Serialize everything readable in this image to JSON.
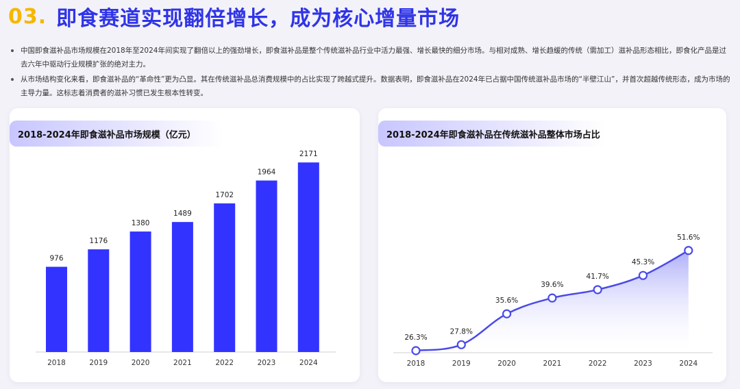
{
  "page": {
    "number": "03.",
    "title": "即食赛道实现翻倍增长，成为核心增量市场",
    "bullets": [
      "中国即食滋补品市场规模在2018年至2024年间实现了翻倍以上的强劲增长，即食滋补品是整个传统滋补品行业中活力最强、增长最快的细分市场。与相对成熟、增长趋缓的传统（需加工）滋补品形态相比，即食化产品是过去六年中驱动行业规模扩张的绝对主力。",
      "从市场结构变化来看，即食滋补品的“革命性”更为凸显。其在传统滋补品总消费规模中的占比实现了跨越式提升。数据表明，即食滋补品在2024年已占据中国传统滋补品市场的“半壁江山”，并首次超越传统形态，成为市场的主导力量。这标志着消费者的滋补习惯已发生根本性转变。"
    ]
  },
  "colors": {
    "accent_yellow": "#f5b700",
    "accent_blue": "#2f34e8",
    "bar_blue": "#3333ff",
    "line_blue": "#4a4ae8"
  },
  "chart_data": [
    {
      "type": "bar",
      "title": "2018-2024年即食滋补品市场规模（亿元）",
      "categories": [
        "2018",
        "2019",
        "2020",
        "2021",
        "2022",
        "2023",
        "2024"
      ],
      "values": [
        976,
        1176,
        1380,
        1489,
        1702,
        1964,
        2171
      ],
      "data_labels": [
        "976",
        "1176",
        "1380",
        "1489",
        "1702",
        "1964",
        "2171"
      ],
      "ylim": [
        0,
        2400
      ],
      "grid": false
    },
    {
      "type": "area",
      "title": "2018-2024年即食滋补品在传统滋补品整体市场占比",
      "categories": [
        "2018",
        "2019",
        "2020",
        "2021",
        "2022",
        "2023",
        "2024"
      ],
      "values": [
        26.3,
        27.8,
        35.6,
        39.6,
        41.7,
        45.3,
        51.6
      ],
      "data_labels": [
        "26.3%",
        "27.8%",
        "35.6%",
        "39.6%",
        "41.7%",
        "45.3%",
        "51.6%"
      ],
      "ylim": [
        0,
        60
      ],
      "grid": false
    }
  ]
}
